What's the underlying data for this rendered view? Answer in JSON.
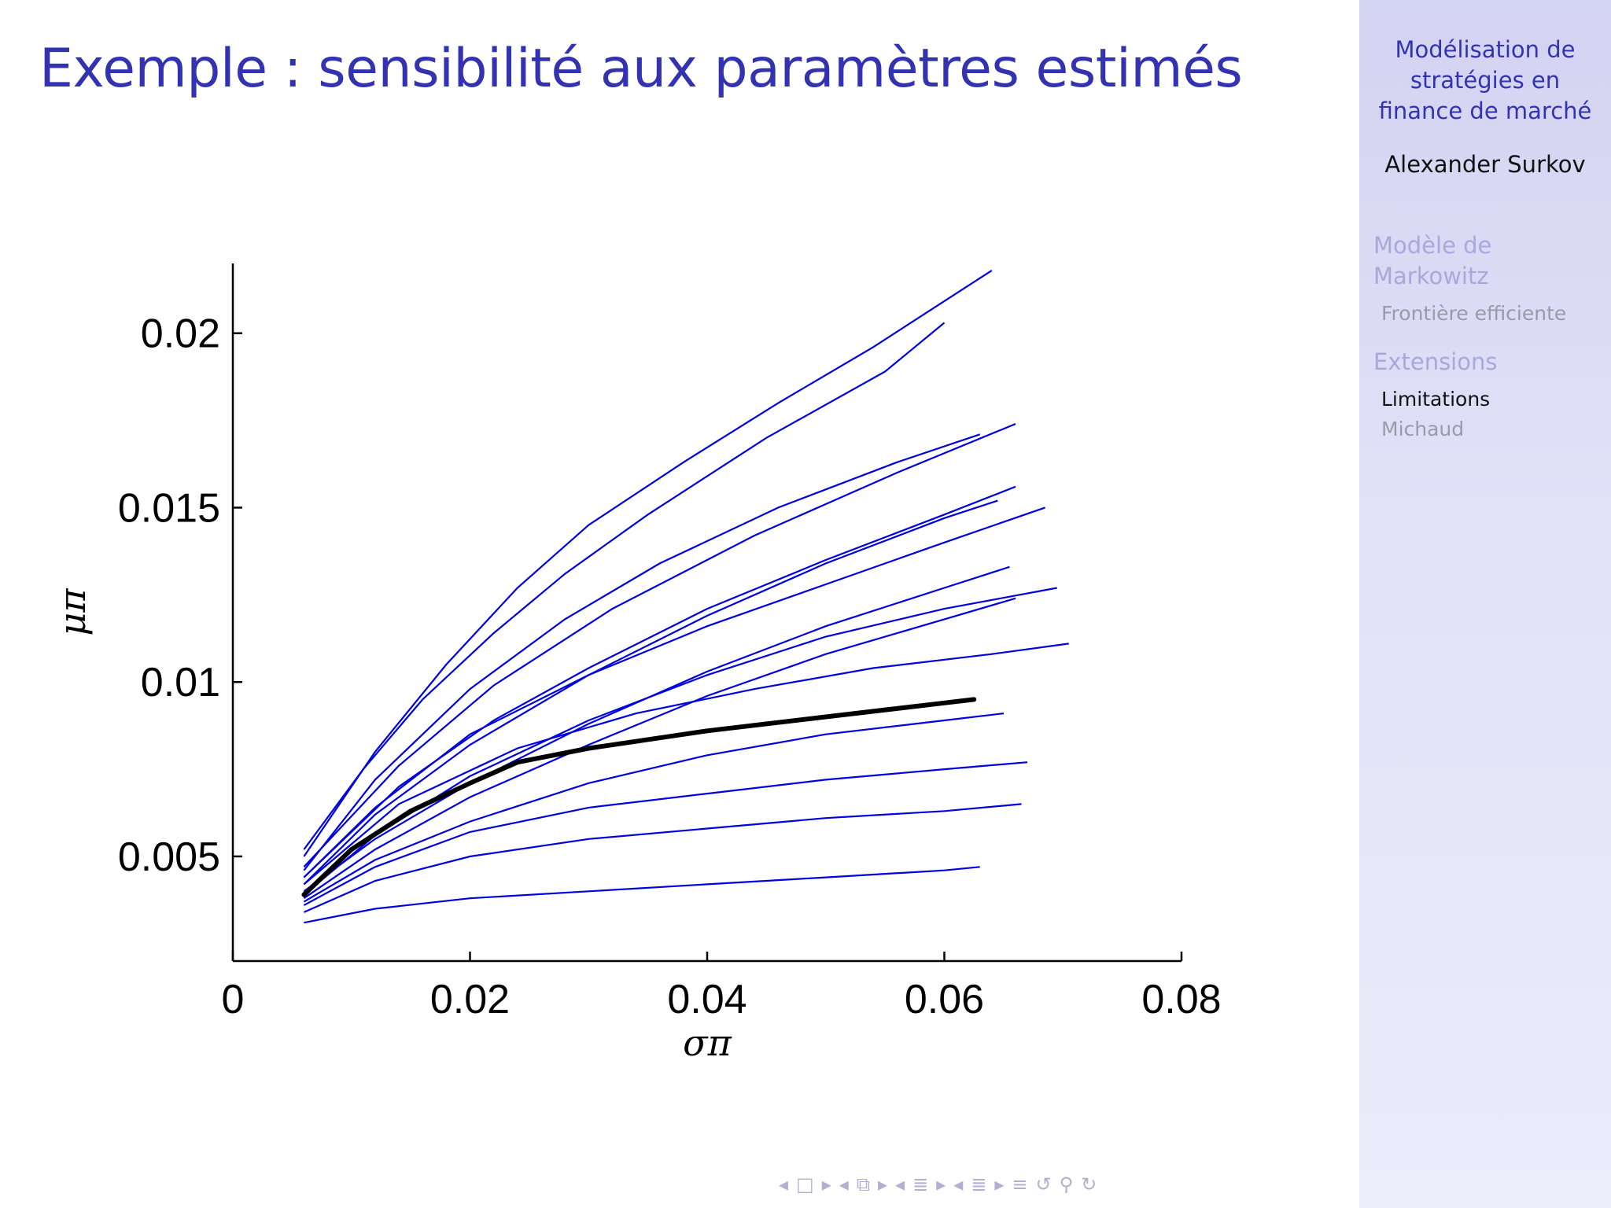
{
  "slide": {
    "title": "Exemple : sensibilité aux paramètres estimés"
  },
  "sidebar": {
    "title_lines": [
      "Modélisation de",
      "stratégies en",
      "finance de marché"
    ],
    "author": "Alexander Surkov",
    "sections": [
      {
        "label_lines": [
          "Modèle de",
          "Markowitz"
        ],
        "subsections": [
          {
            "label": "Frontière efficiente",
            "active": false
          }
        ]
      },
      {
        "label_lines": [
          "Extensions"
        ],
        "subsections": [
          {
            "label": "Limitations",
            "active": true
          },
          {
            "label": "Michaud",
            "active": false
          }
        ]
      }
    ]
  },
  "navigation": {
    "icons": [
      "arrow-left-icon",
      "frame-icon",
      "arrow-right-icon",
      "arrow-left-icon",
      "subsection-icon",
      "arrow-right-icon",
      "arrow-left-icon",
      "section-icon",
      "arrow-right-icon",
      "arrow-left-icon",
      "doc-icon",
      "arrow-right-icon",
      "menu-icon",
      "undo-icon",
      "search-icon",
      "redo-icon"
    ],
    "glyphs": {
      "arrow-left-icon": "◂",
      "arrow-right-icon": "▸",
      "frame-icon": "□",
      "subsection-icon": "⧉",
      "section-icon": "≣",
      "doc-icon": "≣",
      "menu-icon": "≡",
      "undo-icon": "↺",
      "search-icon": "⚲",
      "redo-icon": "↻"
    }
  },
  "colors": {
    "title": "#3333b2",
    "resampled_lines": "#0000dd",
    "mean_line": "#000000",
    "axes": "#000000",
    "sidebar_bg": "#d8d8f4"
  },
  "chart_data": {
    "type": "line",
    "title": "",
    "xlabel": "σπ",
    "ylabel": "μπ",
    "xlim": [
      0,
      0.08
    ],
    "ylim": [
      0.002,
      0.022
    ],
    "xticks": [
      0,
      0.02,
      0.04,
      0.06,
      0.08
    ],
    "xtick_labels": [
      "0",
      "0.02",
      "0.04",
      "0.06",
      "0.08"
    ],
    "yticks": [
      0.005,
      0.01,
      0.015,
      0.02
    ],
    "ytick_labels": [
      "0.005",
      "0.01",
      "0.015",
      "0.02"
    ],
    "grid": false,
    "legend": "none",
    "series": [
      {
        "x": [
          0.006,
          0.01,
          0.015,
          0.02,
          0.024,
          0.03,
          0.04,
          0.05,
          0.06,
          0.0625
        ],
        "y": [
          0.0039,
          0.0052,
          0.0063,
          0.0071,
          0.0077,
          0.0081,
          0.0086,
          0.009,
          0.0094,
          0.0095
        ]
      },
      {
        "x": [
          0.006,
          0.011,
          0.016,
          0.022,
          0.028,
          0.035,
          0.045,
          0.055,
          0.06
        ],
        "y": [
          0.0052,
          0.0075,
          0.0095,
          0.0114,
          0.0131,
          0.0148,
          0.017,
          0.0189,
          0.0203
        ]
      },
      {
        "x": [
          0.006,
          0.012,
          0.018,
          0.024,
          0.03,
          0.038,
          0.046,
          0.054,
          0.064
        ],
        "y": [
          0.005,
          0.008,
          0.0105,
          0.0127,
          0.0145,
          0.0163,
          0.018,
          0.0196,
          0.0218
        ]
      },
      {
        "x": [
          0.006,
          0.012,
          0.02,
          0.028,
          0.036,
          0.046,
          0.056,
          0.063
        ],
        "y": [
          0.0046,
          0.0072,
          0.0098,
          0.0118,
          0.0134,
          0.015,
          0.0163,
          0.0171
        ]
      },
      {
        "x": [
          0.006,
          0.014,
          0.022,
          0.03,
          0.04,
          0.05,
          0.06,
          0.066
        ],
        "y": [
          0.0044,
          0.007,
          0.0089,
          0.0104,
          0.0121,
          0.0135,
          0.0148,
          0.0156
        ]
      },
      {
        "x": [
          0.006,
          0.012,
          0.02,
          0.03,
          0.04,
          0.05,
          0.06,
          0.0685
        ],
        "y": [
          0.0044,
          0.0064,
          0.0085,
          0.0102,
          0.0116,
          0.0128,
          0.014,
          0.015
        ]
      },
      {
        "x": [
          0.006,
          0.014,
          0.024,
          0.034,
          0.044,
          0.054,
          0.064,
          0.0705
        ],
        "y": [
          0.0042,
          0.0065,
          0.0081,
          0.0091,
          0.0098,
          0.0104,
          0.0108,
          0.0111
        ]
      },
      {
        "x": [
          0.006,
          0.012,
          0.02,
          0.03,
          0.04,
          0.05,
          0.06,
          0.0655
        ],
        "y": [
          0.004,
          0.0055,
          0.0071,
          0.0088,
          0.0103,
          0.0116,
          0.0127,
          0.0133
        ]
      },
      {
        "x": [
          0.006,
          0.012,
          0.02,
          0.03,
          0.04,
          0.05,
          0.06,
          0.067
        ],
        "y": [
          0.0036,
          0.0047,
          0.0057,
          0.0064,
          0.0068,
          0.0072,
          0.0075,
          0.0077
        ]
      },
      {
        "x": [
          0.006,
          0.012,
          0.02,
          0.03,
          0.04,
          0.05,
          0.06,
          0.0665
        ],
        "y": [
          0.0034,
          0.0043,
          0.005,
          0.0055,
          0.0058,
          0.0061,
          0.0063,
          0.0065
        ]
      },
      {
        "x": [
          0.006,
          0.012,
          0.02,
          0.03,
          0.04,
          0.05,
          0.06,
          0.063
        ],
        "y": [
          0.0031,
          0.0035,
          0.0038,
          0.004,
          0.0042,
          0.0044,
          0.0046,
          0.0047
        ]
      },
      {
        "x": [
          0.006,
          0.012,
          0.02,
          0.03,
          0.04,
          0.05,
          0.06,
          0.066
        ],
        "y": [
          0.0038,
          0.0052,
          0.0067,
          0.0082,
          0.0096,
          0.0108,
          0.0118,
          0.0124
        ]
      },
      {
        "x": [
          0.006,
          0.012,
          0.02,
          0.03,
          0.04,
          0.05,
          0.06,
          0.0645
        ],
        "y": [
          0.0042,
          0.0062,
          0.0082,
          0.0102,
          0.0119,
          0.0134,
          0.0147,
          0.0152
        ]
      },
      {
        "x": [
          0.006,
          0.012,
          0.02,
          0.03,
          0.04,
          0.05,
          0.06,
          0.065
        ],
        "y": [
          0.0037,
          0.0049,
          0.006,
          0.0071,
          0.0079,
          0.0085,
          0.0089,
          0.0091
        ]
      },
      {
        "x": [
          0.006,
          0.014,
          0.022,
          0.032,
          0.044,
          0.056,
          0.066
        ],
        "y": [
          0.0047,
          0.0076,
          0.0099,
          0.0121,
          0.0142,
          0.016,
          0.0174
        ]
      },
      {
        "x": [
          0.006,
          0.012,
          0.02,
          0.03,
          0.04,
          0.05,
          0.06,
          0.0695
        ],
        "y": [
          0.0039,
          0.0056,
          0.0073,
          0.0089,
          0.0102,
          0.0113,
          0.0121,
          0.0127
        ]
      }
    ]
  }
}
